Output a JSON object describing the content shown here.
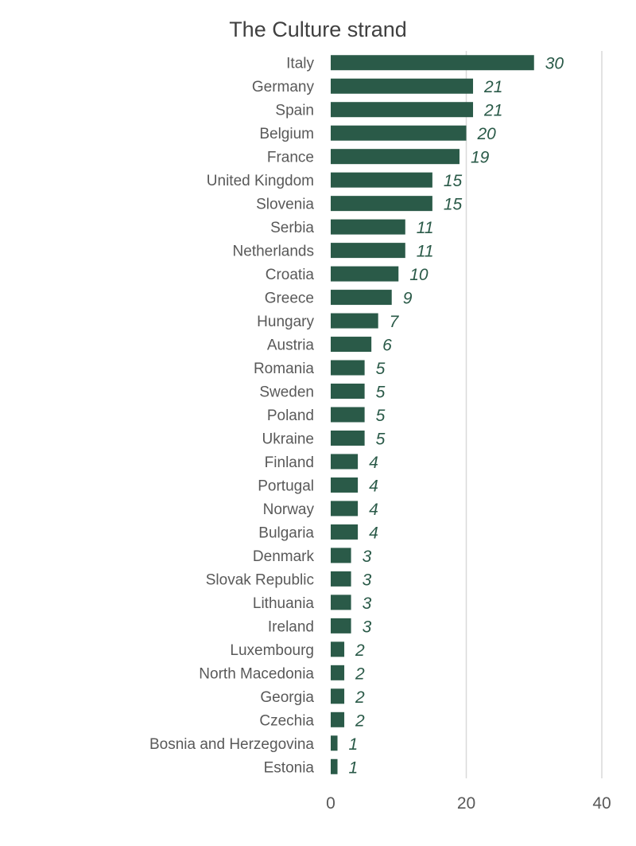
{
  "chart_data": {
    "type": "bar",
    "orientation": "horizontal",
    "title": "The Culture strand",
    "xlabel": "",
    "ylabel": "",
    "xlim": [
      0,
      40
    ],
    "xticks": [
      0,
      20,
      40
    ],
    "xtick_labels": [
      "0",
      "20",
      "40"
    ],
    "grid": true,
    "bar_color": "#2a5a48",
    "label_color": "#2a5a48",
    "categories": [
      "Italy",
      "Germany",
      "Spain",
      "Belgium",
      "France",
      "United Kingdom",
      "Slovenia",
      "Serbia",
      "Netherlands",
      "Croatia",
      "Greece",
      "Hungary",
      "Austria",
      "Romania",
      "Sweden",
      "Poland",
      "Ukraine",
      "Finland",
      "Portugal",
      "Norway",
      "Bulgaria",
      "Denmark",
      "Slovak Republic",
      "Lithuania",
      "Ireland",
      "Luxembourg",
      "North Macedonia",
      "Georgia",
      "Czechia",
      "Bosnia and Herzegovina",
      "Estonia"
    ],
    "values": [
      30,
      21,
      21,
      20,
      19,
      15,
      15,
      11,
      11,
      10,
      9,
      7,
      6,
      5,
      5,
      5,
      5,
      4,
      4,
      4,
      4,
      3,
      3,
      3,
      3,
      2,
      2,
      2,
      2,
      1,
      1
    ]
  }
}
